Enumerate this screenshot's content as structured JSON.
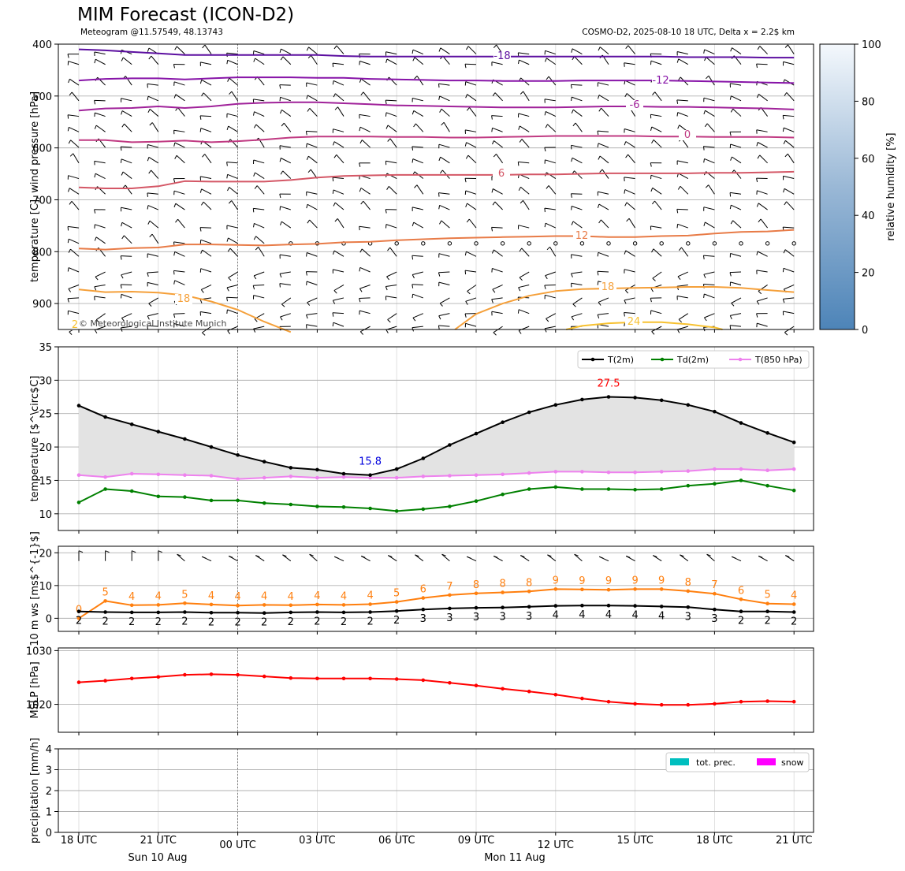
{
  "title": "MIM Forecast (ICON-D2)",
  "subtitle_left": "Meteogram @11.57549, 48.13743",
  "subtitle_right": "COSMO-D2, 2025-08-10 18 UTC, Delta x = 2.2$ km",
  "copyright": "© Meteorological Institute Munich",
  "colors": {
    "t2m": "#000000",
    "td2m": "#008000",
    "t850": "#ee82ee",
    "wind_speed": "#000000",
    "wind_gust": "#ff7f0e",
    "mslp": "#ff0000",
    "prec": "#00bfbf",
    "snow": "#ff00ff"
  },
  "x_axis": {
    "ticks": [
      "18 UTC",
      "21 UTC",
      "00 UTC",
      "03 UTC",
      "06 UTC",
      "09 UTC",
      "12 UTC",
      "15 UTC",
      "18 UTC",
      "21 UTC"
    ],
    "date_labels": [
      "Sun 10 Aug",
      "Mon 11 Aug"
    ]
  },
  "chart_data": [
    {
      "type": "contour",
      "ylabel": "temperature [C], wind pressure [hPa]",
      "y_ticks": [
        "400",
        "500",
        "600",
        "700",
        "800",
        "900"
      ],
      "ylim": [
        950,
        400
      ],
      "colorbar": {
        "label": "relative humidity [%]",
        "ticks": [
          "0",
          "20",
          "40",
          "60",
          "80",
          "100"
        ],
        "range": [
          0,
          100
        ]
      },
      "contour_labels": [
        "-18",
        "-12",
        "-6",
        "0",
        "6",
        "12",
        "18",
        "24",
        "2"
      ],
      "hours": [
        0,
        1,
        2,
        3,
        4,
        5,
        6,
        7,
        8,
        9,
        10,
        11,
        12,
        13,
        14,
        15,
        16,
        17,
        18,
        19,
        20,
        21,
        22,
        23,
        24,
        25,
        26,
        27
      ],
      "isotherms": [
        {
          "level": -18,
          "color": "#5c0fa0",
          "p": [
            410,
            412,
            415,
            418,
            421,
            421,
            421,
            421,
            421,
            421,
            423,
            424,
            424,
            424,
            424,
            424,
            424,
            424,
            424,
            424,
            424,
            424,
            424,
            425,
            425,
            425,
            426,
            426
          ]
        },
        {
          "level": -12,
          "color": "#8714a8",
          "p": [
            470,
            467,
            466,
            466,
            468,
            466,
            464,
            464,
            464,
            465,
            465,
            467,
            468,
            469,
            470,
            470,
            471,
            471,
            471,
            470,
            470,
            470,
            470,
            471,
            472,
            473,
            474,
            475
          ]
        },
        {
          "level": -6,
          "color": "#a0229a",
          "p": [
            528,
            524,
            523,
            520,
            523,
            520,
            515,
            513,
            512,
            512,
            514,
            516,
            518,
            519,
            520,
            521,
            522,
            522,
            522,
            521,
            520,
            520,
            521,
            521,
            522,
            523,
            524,
            526
          ]
        },
        {
          "level": 0,
          "color": "#c03a82",
          "p": [
            585,
            585,
            589,
            588,
            586,
            589,
            587,
            584,
            580,
            578,
            578,
            578,
            579,
            579,
            580,
            580,
            579,
            578,
            577,
            577,
            577,
            577,
            578,
            578,
            579,
            579,
            579,
            580
          ]
        },
        {
          "level": 6,
          "color": "#d45766",
          "p": [
            676,
            678,
            678,
            674,
            664,
            665,
            665,
            665,
            662,
            657,
            654,
            653,
            652,
            652,
            652,
            652,
            652,
            651,
            651,
            650,
            649,
            649,
            649,
            649,
            648,
            648,
            647,
            646
          ]
        },
        {
          "level": 12,
          "color": "#e87b47",
          "p": [
            794,
            796,
            793,
            792,
            786,
            786,
            787,
            788,
            786,
            785,
            782,
            781,
            778,
            776,
            774,
            773,
            772,
            771,
            770,
            770,
            772,
            772,
            770,
            769,
            765,
            762,
            761,
            758
          ]
        },
        {
          "level": 18,
          "color": "#f5a03a",
          "p": [
            873,
            878,
            877,
            879,
            884,
            896,
            912,
            935,
            955
          ]
        }
      ],
      "isotherm_18b": {
        "hours": [
          14.2,
          15,
          16,
          17,
          18,
          19,
          20,
          21,
          22,
          23,
          24,
          25,
          26,
          27
        ],
        "p": [
          950,
          920,
          900,
          885,
          876,
          872,
          871,
          870,
          869,
          868,
          868,
          870,
          874,
          878
        ]
      },
      "isotherm_24": {
        "hours": [
          18.4,
          19,
          20,
          21,
          22,
          23,
          24,
          24.3
        ],
        "p": [
          950,
          943,
          938,
          936,
          936,
          940,
          946,
          950
        ]
      },
      "wind_barbs": "decorative"
    },
    {
      "type": "line",
      "ylabel": "temperature [$^\\circ$C]",
      "y_ticks": [
        "10",
        "15",
        "20",
        "25",
        "30",
        "35"
      ],
      "ylim": [
        7.5,
        35
      ],
      "legend": [
        "T(2m)",
        "Td(2m)",
        "T(850 hPa)"
      ],
      "legend_position": "top-right",
      "max_label": "27.5",
      "min_label": "15.8",
      "t2m": [
        26.2,
        24.5,
        23.4,
        22.3,
        21.2,
        20.0,
        18.8,
        17.8,
        16.9,
        16.6,
        16.0,
        15.8,
        16.7,
        18.3,
        20.3,
        22.0,
        23.7,
        25.2,
        26.3,
        27.1,
        27.5,
        27.4,
        27.0,
        26.3,
        25.3,
        23.6,
        22.1,
        20.7
      ],
      "td2m": [
        11.7,
        13.7,
        13.4,
        12.6,
        12.5,
        12.0,
        12.0,
        11.6,
        11.4,
        11.1,
        11.0,
        10.8,
        10.4,
        10.7,
        11.1,
        11.9,
        12.9,
        13.7,
        14.0,
        13.7,
        13.7,
        13.6,
        13.7,
        14.2,
        14.5,
        15.0,
        14.2,
        13.5
      ],
      "t850": [
        15.8,
        15.5,
        16.0,
        15.9,
        15.8,
        15.7,
        15.2,
        15.4,
        15.6,
        15.4,
        15.5,
        15.4,
        15.4,
        15.6,
        15.7,
        15.8,
        15.9,
        16.1,
        16.3,
        16.3,
        16.2,
        16.2,
        16.3,
        16.4,
        16.7,
        16.7,
        16.5,
        16.7
      ]
    },
    {
      "type": "line",
      "ylabel": "10 m ws [ms$^{-1}$]",
      "y_ticks": [
        "0",
        "10",
        "20"
      ],
      "ylim": [
        -4,
        22
      ],
      "wind_speed": [
        2.1,
        1.9,
        1.8,
        1.8,
        1.9,
        1.7,
        1.7,
        1.6,
        1.8,
        1.9,
        1.8,
        1.9,
        2.2,
        2.7,
        3.0,
        3.2,
        3.3,
        3.5,
        3.8,
        3.9,
        3.9,
        3.8,
        3.6,
        3.4,
        2.7,
        2.1,
        2.1,
        1.9
      ],
      "wind_speed_labels": [
        "2",
        "2",
        "2",
        "2",
        "2",
        "2",
        "2",
        "2",
        "2",
        "2",
        "2",
        "2",
        "2",
        "3",
        "3",
        "3",
        "3",
        "3",
        "4",
        "4",
        "4",
        "4",
        "4",
        "3",
        "3",
        "2",
        "2",
        "2"
      ],
      "gust": [
        0.0,
        5.3,
        4.0,
        4.1,
        4.6,
        4.2,
        3.9,
        4.1,
        4.0,
        4.2,
        4.1,
        4.3,
        5.0,
        6.2,
        7.1,
        7.6,
        7.9,
        8.2,
        8.9,
        8.8,
        8.7,
        8.9,
        8.9,
        8.3,
        7.5,
        5.8,
        4.5,
        4.3
      ],
      "gust_labels": [
        "0",
        "5",
        "4",
        "4",
        "5",
        "4",
        "4",
        "4",
        "4",
        "4",
        "4",
        "4",
        "5",
        "6",
        "7",
        "8",
        "8",
        "8",
        "9",
        "9",
        "9",
        "9",
        "9",
        "8",
        "7",
        "6",
        "5",
        "4"
      ]
    },
    {
      "type": "line",
      "ylabel": "MSLP [hPa]",
      "y_ticks": [
        "1020",
        "1030"
      ],
      "ylim": [
        1014.8,
        1030.5
      ],
      "mslp": [
        1024.1,
        1024.4,
        1024.8,
        1025.1,
        1025.5,
        1025.6,
        1025.5,
        1025.2,
        1024.9,
        1024.8,
        1024.8,
        1024.8,
        1024.7,
        1024.5,
        1024.0,
        1023.5,
        1022.9,
        1022.4,
        1021.8,
        1021.1,
        1020.5,
        1020.1,
        1019.9,
        1019.9,
        1020.1,
        1020.5,
        1020.6,
        1020.5
      ]
    },
    {
      "type": "bar",
      "ylabel": "precipitation [mm/h]",
      "y_ticks": [
        "0",
        "1",
        "2",
        "3",
        "4"
      ],
      "ylim": [
        0,
        4
      ],
      "legend": [
        "tot. prec.",
        "snow"
      ],
      "legend_position": "top-right",
      "precip": [
        0,
        0,
        0,
        0,
        0,
        0,
        0,
        0,
        0,
        0,
        0,
        0,
        0,
        0,
        0,
        0,
        0,
        0,
        0,
        0,
        0,
        0,
        0,
        0,
        0,
        0,
        0,
        0
      ]
    }
  ]
}
